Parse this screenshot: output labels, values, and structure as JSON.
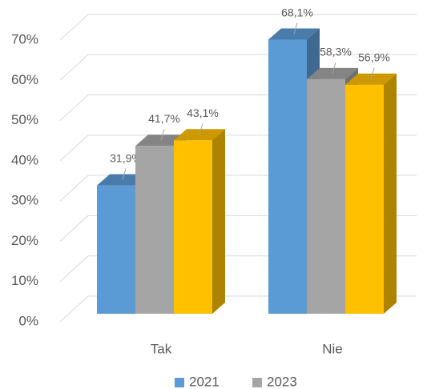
{
  "chart_data": {
    "type": "bar3d",
    "categories": [
      "Tak",
      "Nie"
    ],
    "series": [
      {
        "name": "2021",
        "color": "#5b9bd5",
        "values": [
          31.9,
          68.1
        ],
        "value_labels": [
          "31,9%",
          "68,1%"
        ]
      },
      {
        "name": "2023",
        "color": "#a5a5a5",
        "values": [
          41.7,
          58.3
        ],
        "value_labels": [
          "41,7%",
          "58,3%"
        ]
      },
      {
        "name": null,
        "color": "#ffc000",
        "values": [
          43.1,
          56.9
        ],
        "value_labels": [
          "43,1%",
          "56,9%"
        ]
      }
    ],
    "ylim": [
      0,
      70
    ],
    "yticks": [
      {
        "value": 0,
        "label": "0%"
      },
      {
        "value": 10,
        "label": "10%"
      },
      {
        "value": 20,
        "label": "20%"
      },
      {
        "value": 30,
        "label": "30%"
      },
      {
        "value": 40,
        "label": "40%"
      },
      {
        "value": 50,
        "label": "50%"
      },
      {
        "value": 60,
        "label": "60%"
      },
      {
        "value": 70,
        "label": "70%"
      }
    ],
    "grid": true,
    "legend": "bottom"
  }
}
